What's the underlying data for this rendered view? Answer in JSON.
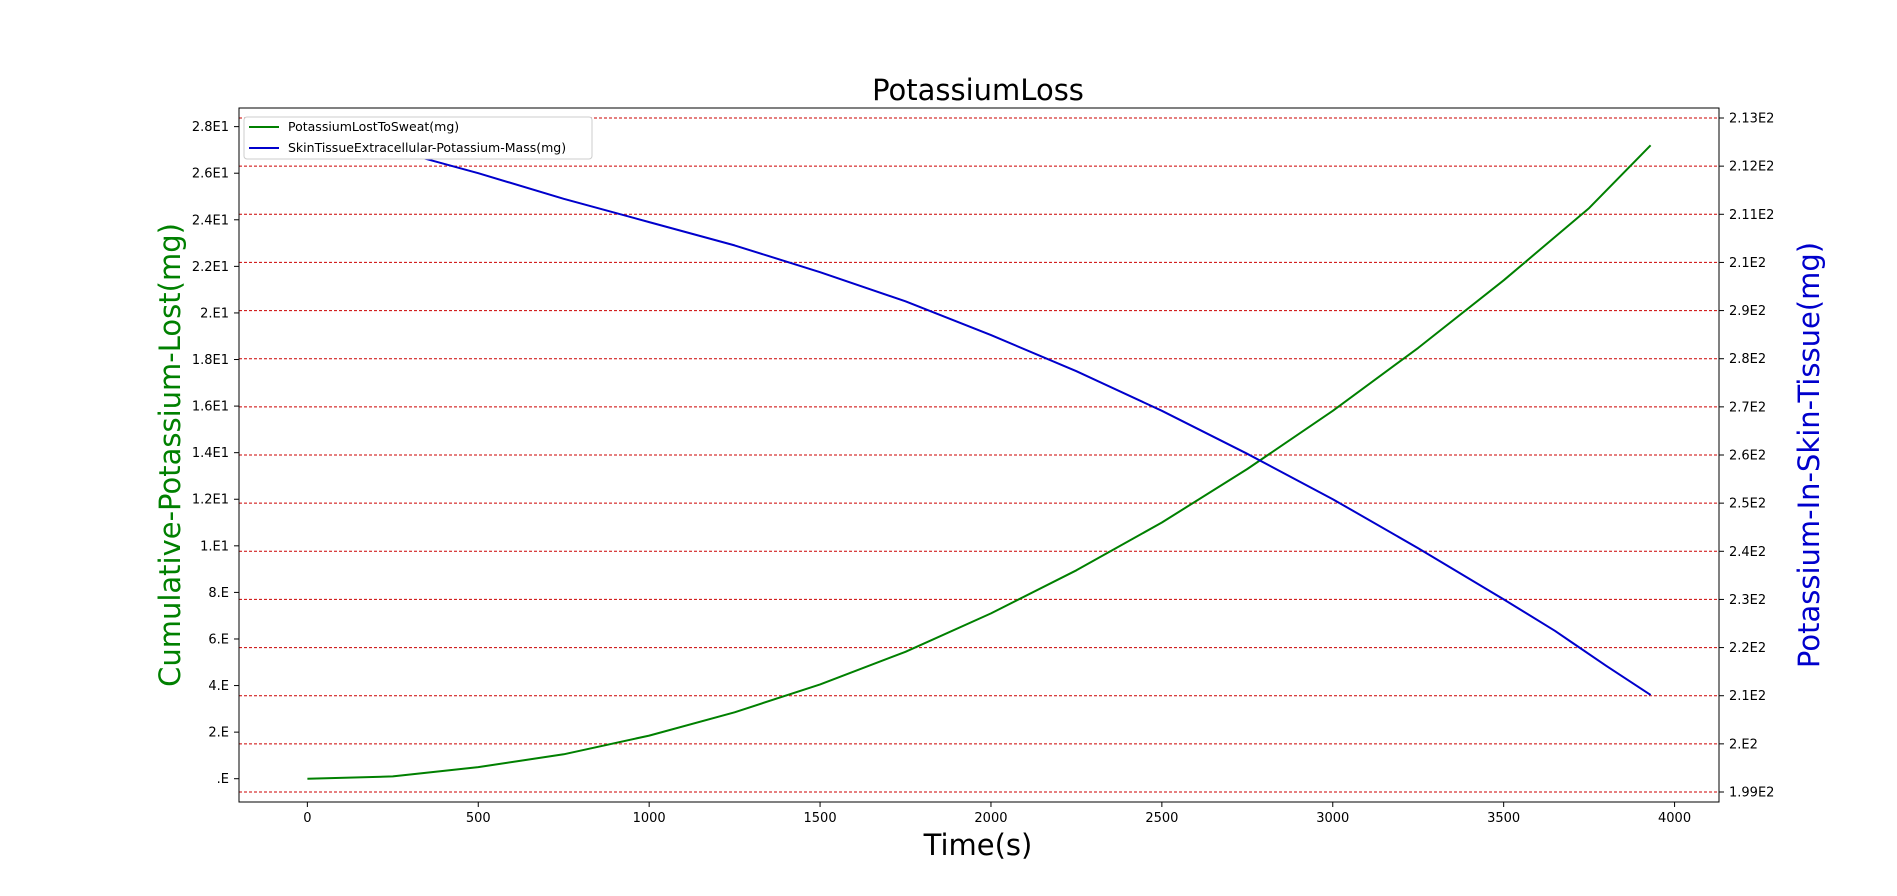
{
  "chart_data": {
    "type": "line",
    "title": "PotassiumLoss",
    "xlabel": "Time(s)",
    "ylabel_left": "Cumulative-Potassium-Lost(mg)",
    "ylabel_right": "Potassium-In-Skin-Tissue(mg)",
    "xlim": [
      -200,
      4130
    ],
    "x_ticks": [
      0,
      500,
      1000,
      1500,
      2000,
      2500,
      3000,
      3500,
      4000
    ],
    "left_ylim": [
      -1.0,
      28.8
    ],
    "left_ticks": [
      {
        "value": 0,
        "label": ".E"
      },
      {
        "value": 2,
        "label": "2.E"
      },
      {
        "value": 4,
        "label": "4.E"
      },
      {
        "value": 6,
        "label": "6.E"
      },
      {
        "value": 8,
        "label": "8.E"
      },
      {
        "value": 10,
        "label": "1.E1"
      },
      {
        "value": 12,
        "label": "1.2E1"
      },
      {
        "value": 14,
        "label": "1.4E1"
      },
      {
        "value": 16,
        "label": "1.6E1"
      },
      {
        "value": 18,
        "label": "1.8E1"
      },
      {
        "value": 20,
        "label": "2.E1"
      },
      {
        "value": 22,
        "label": "2.2E1"
      },
      {
        "value": 24,
        "label": "2.4E1"
      },
      {
        "value": 26,
        "label": "2.6E1"
      },
      {
        "value": 28,
        "label": "2.8E1"
      }
    ],
    "right_ticks": [
      {
        "label": "1.99E2"
      },
      {
        "label": "2.E2"
      },
      {
        "label": "2.1E2"
      },
      {
        "label": "2.2E2"
      },
      {
        "label": "2.3E2"
      },
      {
        "label": "2.4E2"
      },
      {
        "label": "2.5E2"
      },
      {
        "label": "2.6E2"
      },
      {
        "label": "2.7E2"
      },
      {
        "label": "2.8E2"
      },
      {
        "label": "2.9E2"
      },
      {
        "label": "2.1E2"
      },
      {
        "label": "2.11E2"
      },
      {
        "label": "2.12E2"
      },
      {
        "label": "2.13E2"
      }
    ],
    "grid": "horizontal dashed red at right-axis ticks",
    "legend_position": "upper-left",
    "series": [
      {
        "name": "PotassiumLostToSweat(mg)",
        "axis": "left",
        "color": "#008000",
        "x": [
          0,
          250,
          500,
          750,
          1000,
          1250,
          1500,
          1750,
          2000,
          2250,
          2500,
          2750,
          3000,
          3250,
          3500,
          3750,
          3930
        ],
        "y": [
          0.0,
          0.1,
          0.5,
          1.05,
          1.85,
          2.85,
          4.05,
          5.45,
          7.1,
          8.95,
          11.0,
          13.3,
          15.8,
          18.5,
          21.4,
          24.5,
          27.2
        ]
      },
      {
        "name": "SkinTissueExtracellular-Potassium-Mass(mg)",
        "axis": "right",
        "color": "#0000cc",
        "x": [
          0,
          100,
          200,
          300,
          350,
          500,
          750,
          1000,
          1250,
          1500,
          1750,
          2000,
          2250,
          2500,
          2750,
          3000,
          3250,
          3500,
          3650,
          3700,
          3800,
          3930
        ],
        "y": [
          26.8,
          26.95,
          27.0,
          26.8,
          26.6,
          26.0,
          24.9,
          23.9,
          22.9,
          21.75,
          20.5,
          19.05,
          17.5,
          15.8,
          13.95,
          12.0,
          9.9,
          7.7,
          6.35,
          5.85,
          4.85,
          3.6
        ],
        "y_units_note": "plotted against left-axis scale; right axis tick labels as printed"
      }
    ],
    "colors": {
      "left_label": "#008000",
      "right_label": "#0000cc",
      "grid": "#cc0000"
    }
  }
}
